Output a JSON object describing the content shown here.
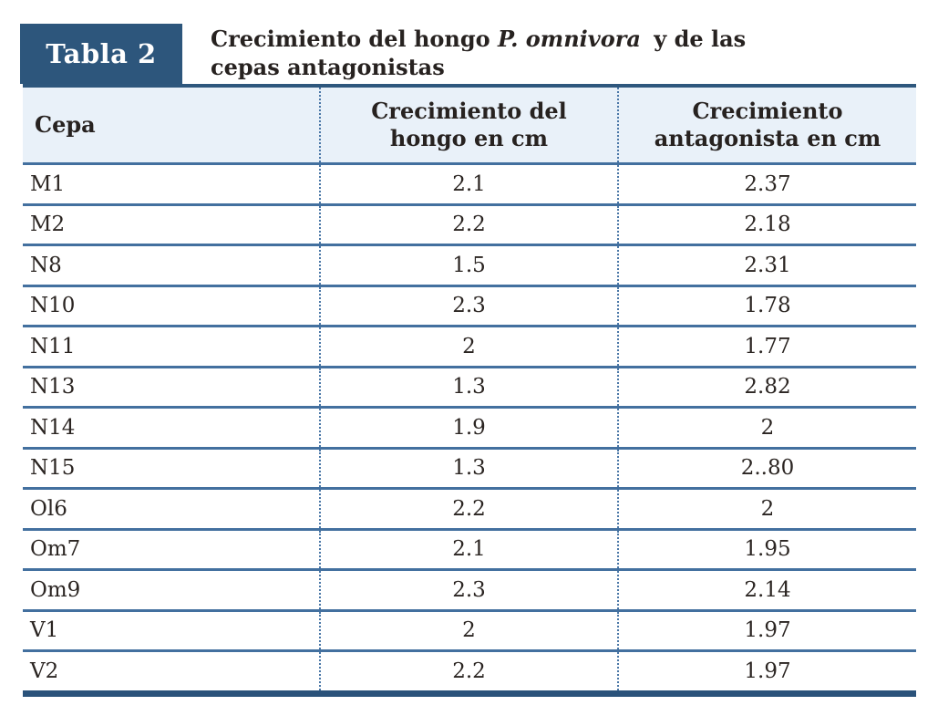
{
  "header": {
    "label": "Tabla 2",
    "title_part1": "Crecimiento del hongo ",
    "title_italic": "P. omnivora",
    "title_part2": " y de las cepas antagonistas"
  },
  "table": {
    "columns": [
      {
        "label": "Cepa",
        "lines": [
          "Cepa"
        ]
      },
      {
        "label": "Crecimiento del hongo en cm",
        "lines": [
          "Crecimiento del",
          "hongo en cm"
        ]
      },
      {
        "label": "Crecimiento antagonista en cm",
        "lines": [
          "Crecimiento",
          "antagonista en cm"
        ]
      }
    ],
    "rows": [
      {
        "cepa": "M1",
        "hongo": "2.1",
        "antagonista": "2.37"
      },
      {
        "cepa": "M2",
        "hongo": "2.2",
        "antagonista": "2.18"
      },
      {
        "cepa": "N8",
        "hongo": "1.5",
        "antagonista": "2.31"
      },
      {
        "cepa": "N10",
        "hongo": "2.3",
        "antagonista": "1.78"
      },
      {
        "cepa": "N11",
        "hongo": "2",
        "antagonista": "1.77"
      },
      {
        "cepa": "N13",
        "hongo": "1.3",
        "antagonista": "2.82"
      },
      {
        "cepa": "N14",
        "hongo": "1.9",
        "antagonista": "2"
      },
      {
        "cepa": "N15",
        "hongo": "1.3",
        "antagonista": "2..80"
      },
      {
        "cepa": "Ol6",
        "hongo": "2.2",
        "antagonista": "2"
      },
      {
        "cepa": "Om7",
        "hongo": "2.1",
        "antagonista": "1.95"
      },
      {
        "cepa": "Om9",
        "hongo": "2.3",
        "antagonista": "2.14"
      },
      {
        "cepa": "V1",
        "hongo": "2",
        "antagonista": "1.97"
      },
      {
        "cepa": "V2",
        "hongo": "2.2",
        "antagonista": "1.97"
      }
    ]
  },
  "colors": {
    "accent_dark_blue": "#2d567c",
    "header_row_bg": "#e9f1f9",
    "separator_line_blue": "#43709f",
    "dotted_line_blue": "#4a77a7",
    "text_dark": "#272220",
    "label_text_white": "#ffffff"
  }
}
